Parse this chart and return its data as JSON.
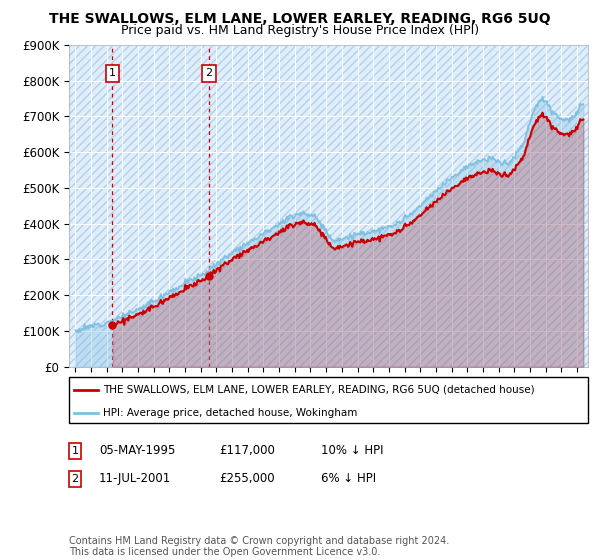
{
  "title": "THE SWALLOWS, ELM LANE, LOWER EARLEY, READING, RG6 5UQ",
  "subtitle": "Price paid vs. HM Land Registry's House Price Index (HPI)",
  "ylim": [
    0,
    900000
  ],
  "yticks": [
    0,
    100000,
    200000,
    300000,
    400000,
    500000,
    600000,
    700000,
    800000,
    900000
  ],
  "ytick_labels": [
    "£0",
    "£100K",
    "£200K",
    "£300K",
    "£400K",
    "£500K",
    "£600K",
    "£700K",
    "£800K",
    "£900K"
  ],
  "xlim_start": 1992.6,
  "xlim_end": 2025.7,
  "hpi_color": "#7fbfdf",
  "price_color": "#cc0000",
  "sale1_x": 1995.35,
  "sale1_y": 117000,
  "sale2_x": 2001.53,
  "sale2_y": 255000,
  "sale1_label": "1",
  "sale2_label": "2",
  "legend_line1": "THE SWALLOWS, ELM LANE, LOWER EARLEY, READING, RG6 5UQ (detached house)",
  "legend_line2": "HPI: Average price, detached house, Wokingham",
  "table_row1": [
    "1",
    "05-MAY-1995",
    "£117,000",
    "10% ↓ HPI"
  ],
  "table_row2": [
    "2",
    "11-JUL-2001",
    "£255,000",
    "6% ↓ HPI"
  ],
  "footnote": "Contains HM Land Registry data © Crown copyright and database right 2024.\nThis data is licensed under the Open Government Licence v3.0.",
  "plot_bg": "#ddeeff",
  "hatch_color": "#b8cfe0",
  "title_fontsize": 10,
  "subtitle_fontsize": 9
}
